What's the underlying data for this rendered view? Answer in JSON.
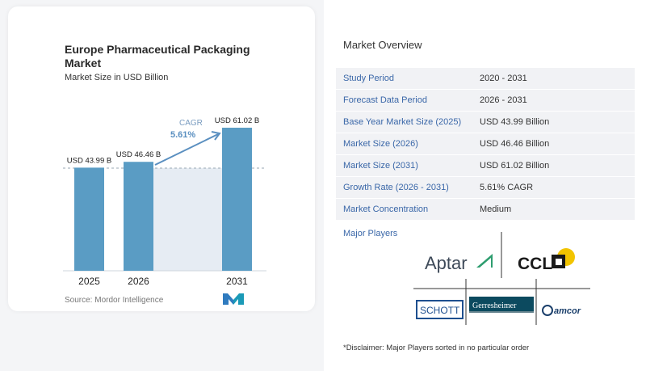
{
  "left_card": {
    "title": "Europe Pharmaceutical Packaging Market",
    "subtitle": "Market Size in USD Billion",
    "source": "Source:  Mordor Intelligence"
  },
  "chart_data": {
    "type": "bar",
    "categories": [
      "2025",
      "2026",
      "2031"
    ],
    "values": [
      43.99,
      46.46,
      61.02
    ],
    "value_labels": [
      "USD 43.99 B",
      "USD 46.46 B",
      "USD 61.02 B"
    ],
    "cagr_label": "CAGR",
    "cagr_value": "5.61%",
    "title": "Europe Pharmaceutical Packaging Market",
    "subtitle": "Market Size in USD Billion",
    "colors": {
      "bar": "#5a9cc4",
      "bar_last": "#5a9cc4",
      "cagr": "#5a8fc0",
      "shade": "#e6ecf3"
    }
  },
  "overview": {
    "title": "Market Overview",
    "rows": [
      {
        "key": "Study Period",
        "value": "2020 - 2031"
      },
      {
        "key": "Forecast Data Period",
        "value": "2026 - 2031"
      },
      {
        "key": "Base Year Market Size (2025)",
        "value": "USD 43.99 Billion"
      },
      {
        "key": "Market Size (2026)",
        "value": "USD 46.46 Billion"
      },
      {
        "key": "Market Size (2031)",
        "value": "USD 61.02 Billion"
      },
      {
        "key": "Growth Rate (2026 - 2031)",
        "value": "5.61% CAGR"
      },
      {
        "key": "Market Concentration",
        "value": "Medium"
      }
    ],
    "major_players_label": "Major Players",
    "players": [
      "Aptar",
      "CCL",
      "SCHOTT",
      "Gerresheimer",
      "amcor"
    ],
    "disclaimer": "*Disclaimer: Major Players sorted in no particular order"
  }
}
